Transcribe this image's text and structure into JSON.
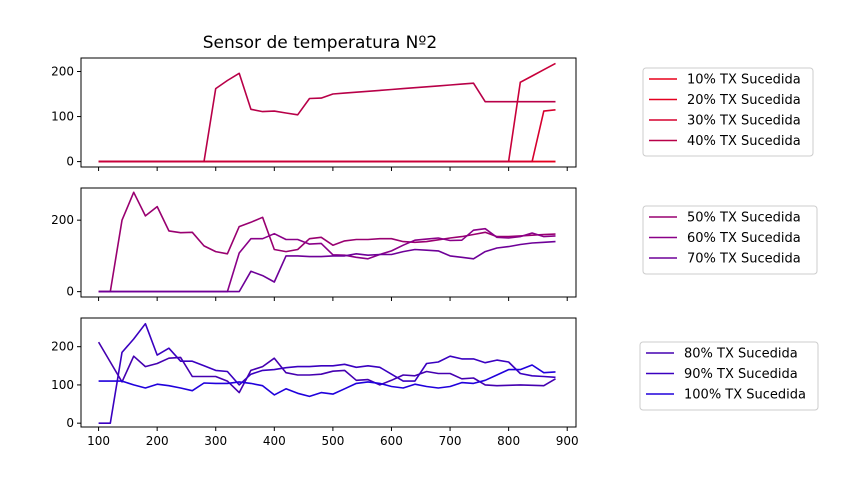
{
  "chart_data": {
    "type": "line",
    "title": "Sensor de temperatura Nº2",
    "x": [
      100,
      120,
      140,
      160,
      180,
      200,
      220,
      240,
      260,
      280,
      300,
      320,
      340,
      360,
      380,
      400,
      420,
      440,
      460,
      480,
      500,
      520,
      540,
      560,
      580,
      600,
      620,
      640,
      660,
      680,
      700,
      720,
      740,
      760,
      780,
      800,
      820,
      840,
      860,
      880
    ],
    "xlim": [
      70,
      915
    ],
    "xticks": [
      100,
      200,
      300,
      400,
      500,
      600,
      700,
      800,
      900
    ],
    "grid": false,
    "legend_position": "right",
    "subplots": [
      {
        "ylim": [
          -12,
          230
        ],
        "yticks": [
          0,
          100,
          200
        ],
        "series": [
          {
            "name": "10% TX Sucedida",
            "color": "#e8001a",
            "values": [
              0,
              0,
              0,
              0,
              0,
              0,
              0,
              0,
              0,
              0,
              0,
              0,
              0,
              0,
              0,
              0,
              0,
              0,
              0,
              0,
              0,
              0,
              0,
              0,
              0,
              0,
              0,
              0,
              0,
              0,
              0,
              0,
              0,
              0,
              0,
              0,
              0,
              0,
              0,
              0
            ]
          },
          {
            "name": "20% TX Sucedida",
            "color": "#e40020",
            "values": [
              0,
              0,
              0,
              0,
              0,
              0,
              0,
              0,
              0,
              0,
              0,
              0,
              0,
              0,
              0,
              0,
              0,
              0,
              0,
              0,
              0,
              0,
              0,
              0,
              0,
              0,
              0,
              0,
              0,
              0,
              0,
              0,
              0,
              0,
              0,
              0,
              0,
              0,
              0,
              0
            ]
          },
          {
            "name": "30% TX Sucedida",
            "color": "#d6002e",
            "values": [
              0,
              0,
              0,
              0,
              0,
              0,
              0,
              0,
              0,
              0,
              0,
              0,
              0,
              0,
              0,
              0,
              0,
              0,
              0,
              0,
              0,
              0,
              0,
              0,
              0,
              0,
              0,
              0,
              0,
              0,
              0,
              0,
              0,
              0,
              0,
              0,
              0,
              0,
              112,
              115
            ]
          },
          {
            "name": "40% TX Sucedida",
            "color": "#b80048",
            "values": [
              0,
              0,
              0,
              0,
              0,
              0,
              0,
              0,
              0,
              0,
              162,
              180,
              196,
              116,
              111,
              112,
              108,
              104,
              140,
              141,
              150,
              152,
              154,
              156,
              158,
              160,
              162,
              164,
              166,
              168,
              170,
              172,
              174,
              133,
              133,
              133,
              133,
              133,
              133,
              133
            ]
          }
        ],
        "overlay": {
          "color": "#c8003a",
          "values": [
            0,
            0,
            0,
            0,
            0,
            0,
            0,
            0,
            0,
            0,
            0,
            0,
            0,
            0,
            0,
            0,
            0,
            0,
            0,
            0,
            0,
            0,
            0,
            0,
            0,
            0,
            0,
            0,
            0,
            0,
            0,
            0,
            0,
            0,
            0,
            0,
            176,
            190,
            204,
            218
          ]
        }
      },
      {
        "ylim": [
          -15,
          290
        ],
        "yticks": [
          0,
          200
        ],
        "series": [
          {
            "name": "50% TX Sucedida",
            "color": "#990070",
            "values": [
              0,
              0,
              200,
              278,
              212,
              238,
              170,
              165,
              166,
              128,
              112,
              106,
              182,
              194,
              208,
              118,
              112,
              118,
              148,
              152,
              130,
              142,
              146,
              146,
              148,
              148,
              140,
              138,
              140,
              145,
              150,
              154,
              160,
              166,
              154,
              154,
              156,
              158,
              160,
              161
            ]
          },
          {
            "name": "60% TX Sucedida",
            "color": "#8a0088",
            "values": [
              0,
              0,
              0,
              0,
              0,
              0,
              0,
              0,
              0,
              0,
              0,
              0,
              108,
              148,
              148,
              162,
              146,
              146,
              133,
              135,
              103,
              102,
              96,
              92,
              104,
              114,
              130,
              144,
              147,
              150,
              143,
              144,
              172,
              176,
              152,
              150,
              154,
              164,
              154,
              156
            ]
          },
          {
            "name": "70% TX Sucedida",
            "color": "#6e0098",
            "values": [
              0,
              0,
              0,
              0,
              0,
              0,
              0,
              0,
              0,
              0,
              0,
              0,
              0,
              57,
              45,
              27,
              100,
              100,
              98,
              98,
              100,
              100,
              106,
              102,
              104,
              104,
              112,
              118,
              116,
              114,
              100,
              96,
              92,
              112,
              122,
              126,
              132,
              136,
              138,
              140
            ]
          }
        ]
      },
      {
        "ylim": [
          -10,
          275
        ],
        "yticks": [
          0,
          100,
          200
        ],
        "series": [
          {
            "name": "80% TX Sucedida",
            "color": "#4500b0",
            "values": [
              212,
              160,
              108,
              175,
              148,
              156,
              170,
              172,
              122,
              122,
              122,
              110,
              80,
              138,
              148,
              170,
              132,
              126,
              126,
              128,
              136,
              138,
              112,
              114,
              100,
              112,
              126,
              124,
              135,
              130,
              130,
              116,
              118,
              100,
              98,
              99,
              100,
              99,
              98,
              116
            ]
          },
          {
            "name": "90% TX Sucedida",
            "color": "#3a00c0",
            "values": [
              0,
              0,
              185,
              220,
              260,
              178,
              196,
              162,
              162,
              150,
              138,
              135,
              100,
              128,
              138,
              140,
              145,
              148,
              148,
              150,
              150,
              154,
              146,
              150,
              146,
              128,
              110,
              110,
              156,
              160,
              175,
              168,
              168,
              158,
              165,
              160,
              130,
              124,
              122,
              120
            ]
          },
          {
            "name": "100% TX Sucedida",
            "color": "#2000dc",
            "values": [
              110,
              110,
              110,
              100,
              92,
              102,
              98,
              92,
              85,
              105,
              104,
              104,
              108,
              104,
              98,
              74,
              90,
              78,
              70,
              80,
              76,
              90,
              104,
              108,
              104,
              96,
              92,
              102,
              96,
              92,
              96,
              106,
              104,
              112,
              126,
              140,
              140,
              152,
              132,
              134
            ]
          }
        ]
      }
    ]
  }
}
